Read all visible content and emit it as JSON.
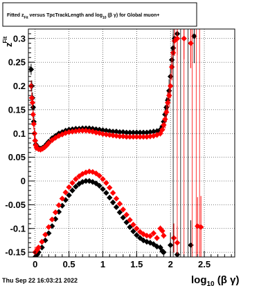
{
  "page": {
    "timestamp": "Thu Sep 22 16:03:21 2022"
  },
  "title_box": {
    "prefix": "Fitted  z",
    "prefix_sub": "Fit",
    "middle": "  versus TpcTrackLength and log",
    "log_sub": "10",
    "suffix": " (β  γ) for Global muon+"
  },
  "chart_data": {
    "type": "scatter",
    "x_axis": {
      "label_main": "log",
      "label_sub": "10",
      "label_tail": " (β γ)",
      "range": [
        -0.1,
        2.95
      ],
      "ticks": [
        0,
        0.5,
        1,
        1.5,
        2,
        2.5
      ],
      "tick_labels": [
        "0",
        "0.5",
        "1",
        "1.5",
        "2",
        "2.5"
      ]
    },
    "y_axis": {
      "label_main": "z",
      "label_sub": "Fit",
      "range": [
        -0.16,
        0.32
      ],
      "ticks": [
        -0.15,
        -0.1,
        -0.05,
        0,
        0.05,
        0.1,
        0.15,
        0.2,
        0.25,
        0.3
      ],
      "tick_labels": [
        "-0.15",
        "-0.1",
        "-0.05",
        "0",
        "0.05",
        "0.1",
        "0.15",
        "0.2",
        "0.25",
        "0.3"
      ]
    },
    "grid": true,
    "series": [
      {
        "color": "#000000",
        "band": "upper",
        "points": [
          [
            -0.06,
            0.235
          ],
          [
            -0.05,
            0.2
          ],
          [
            -0.04,
            0.175
          ],
          [
            -0.03,
            0.155
          ],
          [
            -0.02,
            0.125
          ],
          [
            -0.01,
            0.1
          ],
          [
            0.0,
            0.085
          ],
          [
            0.01,
            0.077
          ],
          [
            0.02,
            0.074
          ],
          [
            0.05,
            0.07
          ],
          [
            0.08,
            0.068
          ],
          [
            0.11,
            0.07
          ],
          [
            0.14,
            0.073
          ],
          [
            0.17,
            0.078
          ],
          [
            0.2,
            0.083
          ],
          [
            0.25,
            0.09
          ],
          [
            0.3,
            0.095
          ],
          [
            0.35,
            0.1
          ],
          [
            0.4,
            0.103
          ],
          [
            0.45,
            0.106
          ],
          [
            0.5,
            0.108
          ],
          [
            0.55,
            0.109
          ],
          [
            0.6,
            0.11
          ],
          [
            0.65,
            0.11
          ],
          [
            0.7,
            0.111
          ],
          [
            0.75,
            0.111
          ],
          [
            0.8,
            0.111
          ],
          [
            0.85,
            0.11
          ],
          [
            0.9,
            0.109
          ],
          [
            0.95,
            0.108
          ],
          [
            1.0,
            0.107
          ],
          [
            1.05,
            0.106
          ],
          [
            1.1,
            0.105
          ],
          [
            1.15,
            0.104
          ],
          [
            1.2,
            0.104
          ],
          [
            1.25,
            0.103
          ],
          [
            1.3,
            0.103
          ],
          [
            1.35,
            0.102
          ],
          [
            1.4,
            0.102
          ],
          [
            1.45,
            0.102
          ],
          [
            1.5,
            0.102
          ],
          [
            1.55,
            0.102
          ],
          [
            1.6,
            0.102
          ],
          [
            1.65,
            0.102
          ],
          [
            1.7,
            0.103
          ],
          [
            1.75,
            0.104
          ],
          [
            1.8,
            0.105
          ],
          [
            1.85,
            0.108
          ],
          [
            1.88,
            0.115
          ],
          [
            1.9,
            0.125
          ],
          [
            1.92,
            0.14
          ],
          [
            1.94,
            0.155
          ],
          [
            1.96,
            0.17
          ],
          [
            1.98,
            0.19
          ],
          [
            2.0,
            0.22
          ],
          [
            2.02,
            0.255
          ],
          [
            2.04,
            0.28
          ],
          [
            2.06,
            0.3
          ],
          [
            2.1,
            0.31
          ],
          [
            2.35,
            0.305
          ]
        ]
      },
      {
        "color": "#ff0000",
        "band": "upper",
        "points": [
          [
            -0.06,
            0.2
          ],
          [
            -0.05,
            0.175
          ],
          [
            -0.04,
            0.165
          ],
          [
            -0.03,
            0.14
          ],
          [
            -0.02,
            0.12
          ],
          [
            -0.01,
            0.1
          ],
          [
            0.0,
            0.085
          ],
          [
            0.01,
            0.075
          ],
          [
            0.02,
            0.07
          ],
          [
            0.05,
            0.067
          ],
          [
            0.08,
            0.066
          ],
          [
            0.11,
            0.068
          ],
          [
            0.14,
            0.071
          ],
          [
            0.17,
            0.075
          ],
          [
            0.2,
            0.08
          ],
          [
            0.25,
            0.086
          ],
          [
            0.3,
            0.091
          ],
          [
            0.35,
            0.095
          ],
          [
            0.4,
            0.098
          ],
          [
            0.45,
            0.101
          ],
          [
            0.5,
            0.103
          ],
          [
            0.55,
            0.104
          ],
          [
            0.6,
            0.105
          ],
          [
            0.65,
            0.106
          ],
          [
            0.7,
            0.106
          ],
          [
            0.75,
            0.106
          ],
          [
            0.8,
            0.105
          ],
          [
            0.85,
            0.104
          ],
          [
            0.9,
            0.102
          ],
          [
            0.95,
            0.101
          ],
          [
            1.0,
            0.099
          ],
          [
            1.05,
            0.098
          ],
          [
            1.1,
            0.097
          ],
          [
            1.15,
            0.096
          ],
          [
            1.2,
            0.095
          ],
          [
            1.25,
            0.094
          ],
          [
            1.3,
            0.094
          ],
          [
            1.35,
            0.093
          ],
          [
            1.4,
            0.093
          ],
          [
            1.45,
            0.093
          ],
          [
            1.5,
            0.093
          ],
          [
            1.55,
            0.093
          ],
          [
            1.6,
            0.093
          ],
          [
            1.65,
            0.093
          ],
          [
            1.7,
            0.094
          ],
          [
            1.75,
            0.095
          ],
          [
            1.8,
            0.097
          ],
          [
            1.85,
            0.1
          ],
          [
            1.88,
            0.108
          ],
          [
            1.9,
            0.118
          ],
          [
            1.92,
            0.13
          ],
          [
            1.94,
            0.145
          ],
          [
            1.96,
            0.165
          ],
          [
            1.98,
            0.18
          ],
          [
            2.0,
            0.2
          ],
          [
            2.02,
            0.24
          ],
          [
            2.04,
            0.27
          ],
          [
            2.06,
            0.295
          ],
          [
            2.1,
            0.3
          ],
          [
            2.2,
            0.3
          ],
          [
            2.3,
            0.29
          ]
        ]
      },
      {
        "color": "#000000",
        "band": "lower",
        "points": [
          [
            0.0,
            -0.16
          ],
          [
            0.03,
            -0.155
          ],
          [
            0.05,
            -0.15
          ],
          [
            0.1,
            -0.14
          ],
          [
            0.15,
            -0.125
          ],
          [
            0.2,
            -0.11
          ],
          [
            0.25,
            -0.095
          ],
          [
            0.3,
            -0.08
          ],
          [
            0.35,
            -0.065
          ],
          [
            0.4,
            -0.052
          ],
          [
            0.45,
            -0.04
          ],
          [
            0.5,
            -0.03
          ],
          [
            0.55,
            -0.02
          ],
          [
            0.6,
            -0.012
          ],
          [
            0.65,
            -0.006
          ],
          [
            0.7,
            -0.002
          ],
          [
            0.75,
            0.0
          ],
          [
            0.8,
            0.0
          ],
          [
            0.85,
            -0.002
          ],
          [
            0.9,
            -0.005
          ],
          [
            0.95,
            -0.01
          ],
          [
            1.0,
            -0.017
          ],
          [
            1.05,
            -0.025
          ],
          [
            1.1,
            -0.035
          ],
          [
            1.15,
            -0.045
          ],
          [
            1.2,
            -0.055
          ],
          [
            1.25,
            -0.066
          ],
          [
            1.3,
            -0.077
          ],
          [
            1.35,
            -0.087
          ],
          [
            1.4,
            -0.097
          ],
          [
            1.45,
            -0.106
          ],
          [
            1.5,
            -0.114
          ],
          [
            1.55,
            -0.12
          ],
          [
            1.6,
            -0.125
          ],
          [
            1.65,
            -0.128
          ],
          [
            1.7,
            -0.13
          ],
          [
            1.75,
            -0.133
          ],
          [
            1.8,
            -0.138
          ],
          [
            1.85,
            -0.14
          ],
          [
            1.88,
            -0.148
          ],
          [
            1.9,
            -0.15
          ],
          [
            2.0,
            -0.135
          ],
          [
            2.1,
            -0.155
          ],
          [
            2.3,
            -0.135
          ]
        ]
      },
      {
        "color": "#ff0000",
        "band": "lower",
        "points": [
          [
            0.0,
            -0.15
          ],
          [
            0.03,
            -0.145
          ],
          [
            0.05,
            -0.14
          ],
          [
            0.1,
            -0.128
          ],
          [
            0.15,
            -0.113
          ],
          [
            0.2,
            -0.097
          ],
          [
            0.25,
            -0.081
          ],
          [
            0.3,
            -0.066
          ],
          [
            0.35,
            -0.051
          ],
          [
            0.4,
            -0.037
          ],
          [
            0.45,
            -0.024
          ],
          [
            0.5,
            -0.013
          ],
          [
            0.55,
            -0.004
          ],
          [
            0.6,
            0.004
          ],
          [
            0.65,
            0.01
          ],
          [
            0.7,
            0.015
          ],
          [
            0.75,
            0.018
          ],
          [
            0.8,
            0.02
          ],
          [
            0.85,
            0.019
          ],
          [
            0.9,
            0.016
          ],
          [
            0.95,
            0.011
          ],
          [
            1.0,
            0.004
          ],
          [
            1.05,
            -0.004
          ],
          [
            1.1,
            -0.014
          ],
          [
            1.15,
            -0.025
          ],
          [
            1.2,
            -0.037
          ],
          [
            1.25,
            -0.048
          ],
          [
            1.3,
            -0.06
          ],
          [
            1.35,
            -0.071
          ],
          [
            1.4,
            -0.082
          ],
          [
            1.45,
            -0.092
          ],
          [
            1.5,
            -0.1
          ],
          [
            1.55,
            -0.107
          ],
          [
            1.6,
            -0.112
          ],
          [
            1.65,
            -0.115
          ],
          [
            1.7,
            -0.116
          ],
          [
            1.75,
            -0.11
          ],
          [
            1.8,
            -0.12
          ],
          [
            1.85,
            -0.1
          ],
          [
            1.88,
            -0.105
          ],
          [
            1.9,
            -0.115
          ],
          [
            2.05,
            -0.12
          ],
          [
            2.1,
            -0.13
          ],
          [
            2.4,
            -0.095
          ],
          [
            2.45,
            -0.097
          ]
        ]
      }
    ]
  }
}
